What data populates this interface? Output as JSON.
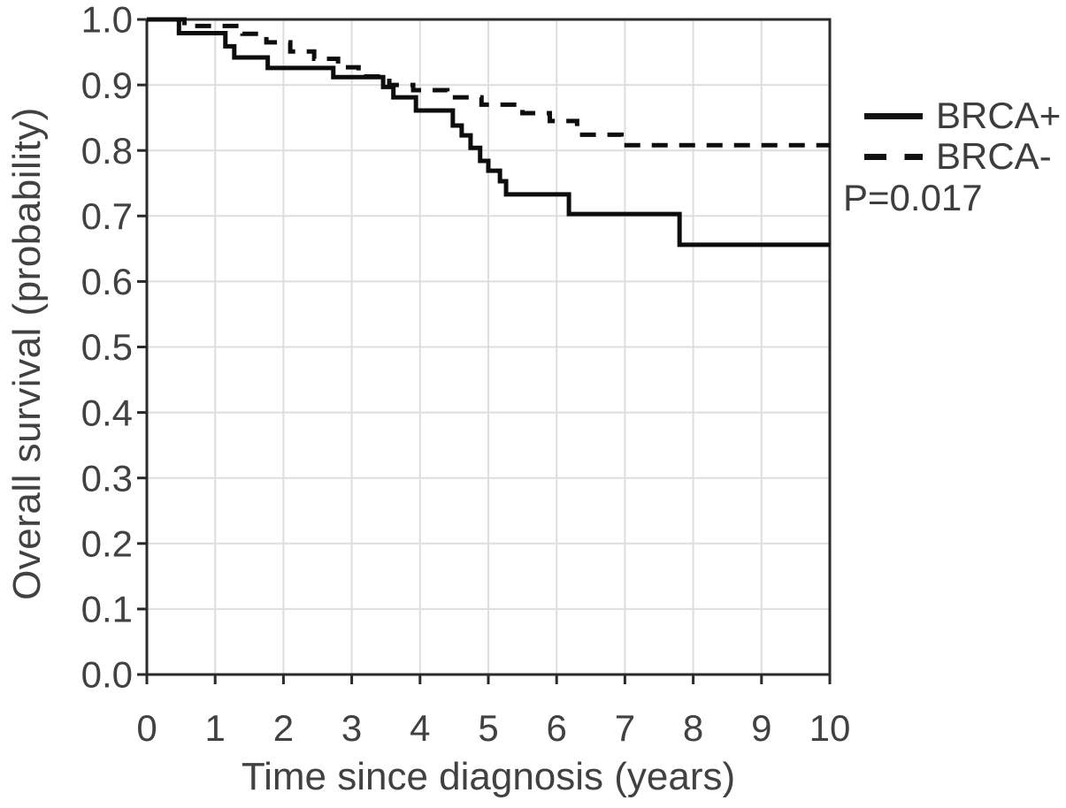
{
  "chart_data": {
    "type": "line",
    "chart_kind": "kaplan_meier_step",
    "title": "",
    "xlabel": "Time since diagnosis (years)",
    "ylabel": "Overall survival (probability)",
    "xlim": [
      0,
      10
    ],
    "ylim": [
      0.0,
      1.0
    ],
    "x_ticks": [
      "0",
      "1",
      "2",
      "3",
      "4",
      "5",
      "6",
      "7",
      "8",
      "9",
      "10"
    ],
    "y_ticks": [
      "0.0",
      "0.1",
      "0.2",
      "0.3",
      "0.4",
      "0.5",
      "0.6",
      "0.7",
      "0.8",
      "0.9",
      "1.0"
    ],
    "grid": true,
    "legend_position": "right-outside",
    "p_value": "P=0.017",
    "colors": {
      "line": "#0d0d0d",
      "grid": "#dedede",
      "axis": "#2a2a2a",
      "text": "#414141"
    },
    "series": [
      {
        "name": "BRCA+",
        "line_style": "solid",
        "points": [
          [
            0,
            1.0
          ],
          [
            0.47,
            0.979
          ],
          [
            1.15,
            0.959
          ],
          [
            1.28,
            0.942
          ],
          [
            1.77,
            0.926
          ],
          [
            2.73,
            0.912
          ],
          [
            3.46,
            0.897
          ],
          [
            3.61,
            0.881
          ],
          [
            3.94,
            0.861
          ],
          [
            4.48,
            0.838
          ],
          [
            4.61,
            0.823
          ],
          [
            4.74,
            0.804
          ],
          [
            4.88,
            0.784
          ],
          [
            5.0,
            0.769
          ],
          [
            5.17,
            0.753
          ],
          [
            5.26,
            0.733
          ],
          [
            6.18,
            0.703
          ],
          [
            7.8,
            0.656
          ],
          [
            10,
            0.656
          ]
        ]
      },
      {
        "name": "BRCA-",
        "line_style": "dashed",
        "points": [
          [
            0,
            1.0
          ],
          [
            0.55,
            0.99
          ],
          [
            1.4,
            0.978
          ],
          [
            1.75,
            0.965
          ],
          [
            2.1,
            0.951
          ],
          [
            2.45,
            0.94
          ],
          [
            2.8,
            0.927
          ],
          [
            3.1,
            0.913
          ],
          [
            3.55,
            0.9
          ],
          [
            3.9,
            0.892
          ],
          [
            4.4,
            0.881
          ],
          [
            4.9,
            0.87
          ],
          [
            5.5,
            0.857
          ],
          [
            5.9,
            0.845
          ],
          [
            6.3,
            0.824
          ],
          [
            6.95,
            0.808
          ],
          [
            10,
            0.808
          ]
        ]
      }
    ]
  }
}
